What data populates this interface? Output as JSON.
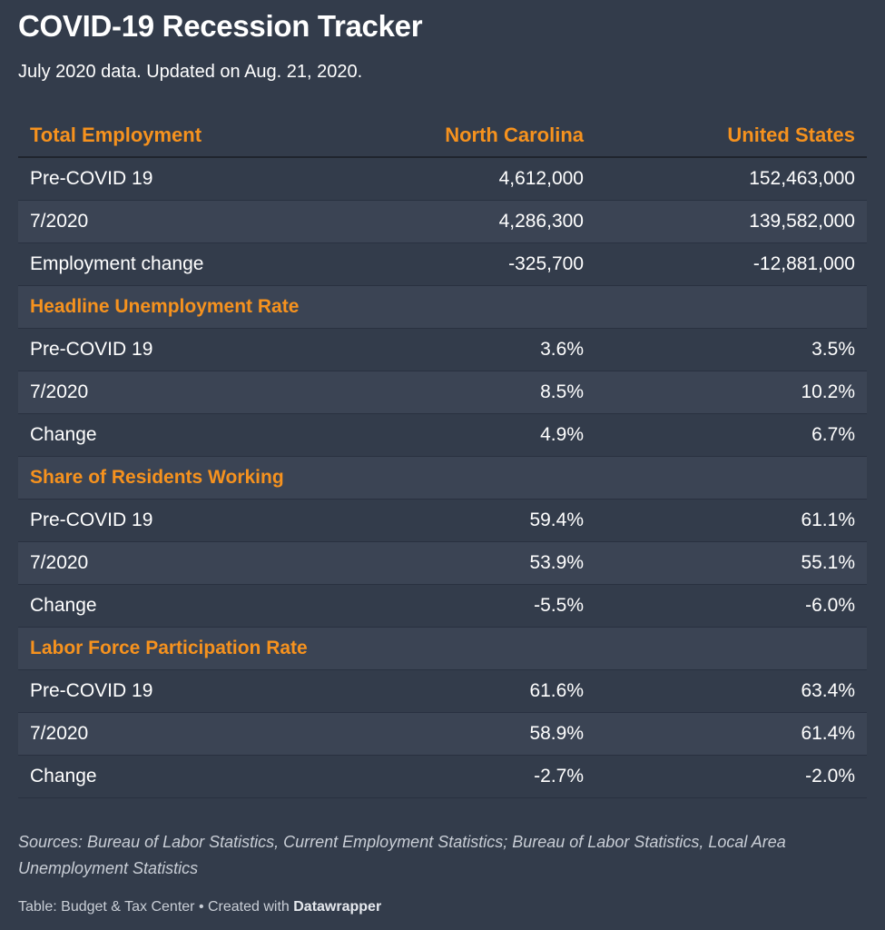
{
  "title": "COVID-19 Recession Tracker",
  "subtitle": "July 2020 data. Updated on Aug. 21, 2020.",
  "chart_data": {
    "type": "table",
    "columns": [
      "Total Employment",
      "North Carolina",
      "United States"
    ],
    "rows": [
      {
        "kind": "data",
        "label": "Pre-COVID 19",
        "nc": "4,612,000",
        "us": "152,463,000"
      },
      {
        "kind": "data",
        "label": "7/2020",
        "nc": "4,286,300",
        "us": "139,582,000"
      },
      {
        "kind": "data",
        "label": "Employment change",
        "nc": "-325,700",
        "us": "-12,881,000"
      },
      {
        "kind": "section",
        "label": "Headline Unemployment Rate",
        "nc": "",
        "us": ""
      },
      {
        "kind": "data",
        "label": "Pre-COVID 19",
        "nc": "3.6%",
        "us": "3.5%"
      },
      {
        "kind": "data",
        "label": "7/2020",
        "nc": "8.5%",
        "us": "10.2%"
      },
      {
        "kind": "data",
        "label": "Change",
        "nc": "4.9%",
        "us": "6.7%"
      },
      {
        "kind": "section",
        "label": "Share of Residents Working",
        "nc": "",
        "us": ""
      },
      {
        "kind": "data",
        "label": "Pre-COVID 19",
        "nc": "59.4%",
        "us": "61.1%"
      },
      {
        "kind": "data",
        "label": "7/2020",
        "nc": "53.9%",
        "us": "55.1%"
      },
      {
        "kind": "data",
        "label": "Change",
        "nc": "-5.5%",
        "us": "-6.0%"
      },
      {
        "kind": "section",
        "label": "Labor Force Participation Rate",
        "nc": "",
        "us": ""
      },
      {
        "kind": "data",
        "label": "Pre-COVID 19",
        "nc": "61.6%",
        "us": "63.4%"
      },
      {
        "kind": "data",
        "label": "7/2020",
        "nc": "58.9%",
        "us": "61.4%"
      },
      {
        "kind": "data",
        "label": "Change",
        "nc": "-2.7%",
        "us": "-2.0%"
      }
    ]
  },
  "sources": "Sources: Bureau of Labor Statistics, Current Employment Statistics; Bureau of Labor Statistics, Local Area Unemployment Statistics",
  "footer": {
    "credit": "Table: Budget & Tax Center • Created with ",
    "tool": "Datawrapper"
  },
  "colors": {
    "background": "#333c4b",
    "row_shade": "#3b4454",
    "accent": "#f6921e",
    "text": "#ffffff",
    "muted": "#c9ced6"
  }
}
